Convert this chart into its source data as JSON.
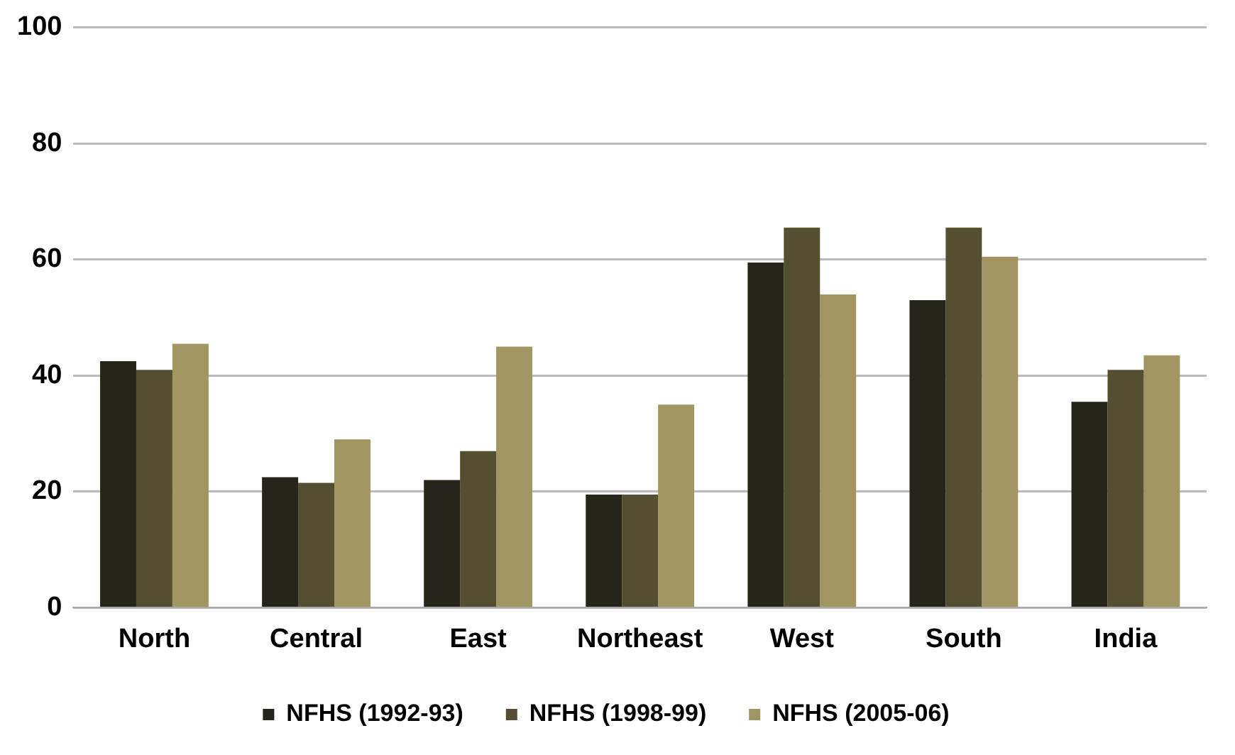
{
  "chart_data": {
    "type": "bar",
    "categories": [
      "North",
      "Central",
      "East",
      "Northeast",
      "West",
      "South",
      "India"
    ],
    "series": [
      {
        "name": "NFHS (1992-93)",
        "color": "#27251a",
        "values": [
          42.5,
          22.5,
          22,
          19.5,
          59.5,
          53,
          35.5
        ]
      },
      {
        "name": "NFHS (1998-99)",
        "color": "#554f31",
        "values": [
          41,
          21.5,
          27,
          19.5,
          65.5,
          65.5,
          41
        ]
      },
      {
        "name": "NFHS (2005-06)",
        "color": "#a19661",
        "values": [
          45.5,
          29,
          45,
          35,
          54,
          60.5,
          43.5
        ]
      }
    ],
    "ylim": [
      0,
      100
    ],
    "yticks": [
      0,
      20,
      40,
      60,
      80,
      100
    ],
    "grid": "y",
    "legend": "bottom"
  }
}
